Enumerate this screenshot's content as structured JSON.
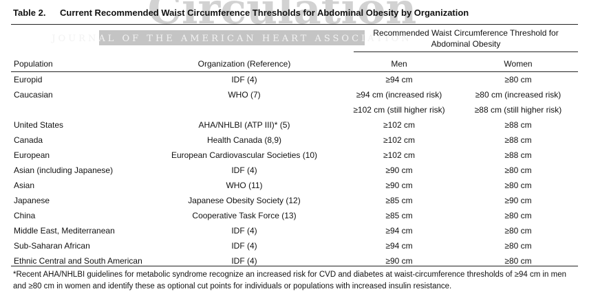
{
  "title": {
    "number": "Table 2.",
    "text": "Current Recommended Waist Circumference Thresholds for Abdominal Obesity by Organization"
  },
  "watermark": {
    "journal_name": "Circulation",
    "subtitle": "JOURNAL OF THE AMERICAN HEART ASSOCIATION",
    "color": "#b9b9b9"
  },
  "group_header": "Recommended Waist Circumference Threshold for Abdominal Obesity",
  "columns": {
    "population": "Population",
    "organization": "Organization (Reference)",
    "men": "Men",
    "women": "Women"
  },
  "rows": [
    {
      "population": "Europid",
      "organization": "IDF (4)",
      "men": "≥94 cm",
      "women": "≥80 cm"
    },
    {
      "population": "Caucasian",
      "organization": "WHO (7)",
      "men": "≥94 cm (increased risk)",
      "women": "≥80 cm (increased risk)"
    },
    {
      "population": "",
      "organization": "",
      "men": "≥102 cm (still higher risk)",
      "women": "≥88 cm (still higher risk)"
    },
    {
      "population": "United States",
      "organization": "AHA/NHLBI (ATP III)* (5)",
      "men": "≥102 cm",
      "women": "≥88 cm"
    },
    {
      "population": "Canada",
      "organization": "Health Canada (8,9)",
      "men": "≥102 cm",
      "women": "≥88 cm"
    },
    {
      "population": "European",
      "organization": "European Cardiovascular Societies (10)",
      "men": "≥102 cm",
      "women": "≥88 cm"
    },
    {
      "population": "Asian (including Japanese)",
      "organization": "IDF (4)",
      "men": "≥90 cm",
      "women": "≥80 cm"
    },
    {
      "population": "Asian",
      "organization": "WHO (11)",
      "men": "≥90 cm",
      "women": "≥80 cm"
    },
    {
      "population": "Japanese",
      "organization": "Japanese Obesity Society (12)",
      "men": "≥85 cm",
      "women": "≥90 cm"
    },
    {
      "population": "China",
      "organization": "Cooperative Task Force (13)",
      "men": "≥85 cm",
      "women": "≥80 cm"
    },
    {
      "population": "Middle East, Mediterranean",
      "organization": "IDF (4)",
      "men": "≥94 cm",
      "women": "≥80 cm"
    },
    {
      "population": "Sub-Saharan African",
      "organization": "IDF (4)",
      "men": "≥94 cm",
      "women": "≥80 cm"
    },
    {
      "population": "Ethnic Central and South American",
      "organization": "IDF (4)",
      "men": "≥90 cm",
      "women": "≥80 cm"
    }
  ],
  "footnote": "*Recent AHA/NHLBI guidelines for metabolic syndrome recognize an increased risk for CVD and diabetes at waist-circumference thresholds of ≥94 cm in men and ≥80 cm in women and identify these as optional cut points for individuals or populations with increased insulin resistance."
}
